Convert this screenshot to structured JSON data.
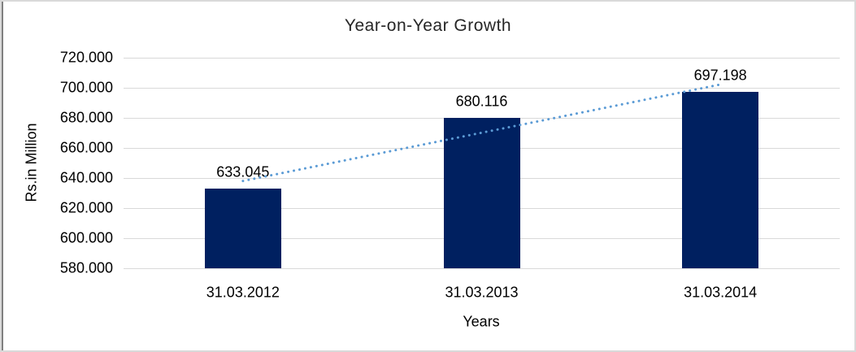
{
  "chart_data": {
    "type": "bar",
    "title": "Year-on-Year Growth",
    "xlabel": "Years",
    "ylabel": "Rs.in Million",
    "categories": [
      "31.03.2012",
      "31.03.2013",
      "31.03.2014"
    ],
    "values": [
      633.045,
      680.116,
      697.198
    ],
    "data_labels": [
      "633.045",
      "680.116",
      "697.198"
    ],
    "ytick_labels": [
      "720.000",
      "700.000",
      "680.000",
      "660.000",
      "640.000",
      "620.000",
      "600.000",
      "580.000"
    ],
    "ytick_values": [
      720,
      700,
      680,
      660,
      640,
      620,
      600,
      580
    ],
    "ylim": [
      580,
      720
    ],
    "grid": true,
    "legend": "none",
    "bar_color": "#002060",
    "gridline_color": "#d9d9d9",
    "trendline": {
      "type": "linear",
      "style": "dotted",
      "color": "#5b9bd5",
      "fitted_values": [
        638.043,
        670.12,
        702.196
      ]
    }
  }
}
